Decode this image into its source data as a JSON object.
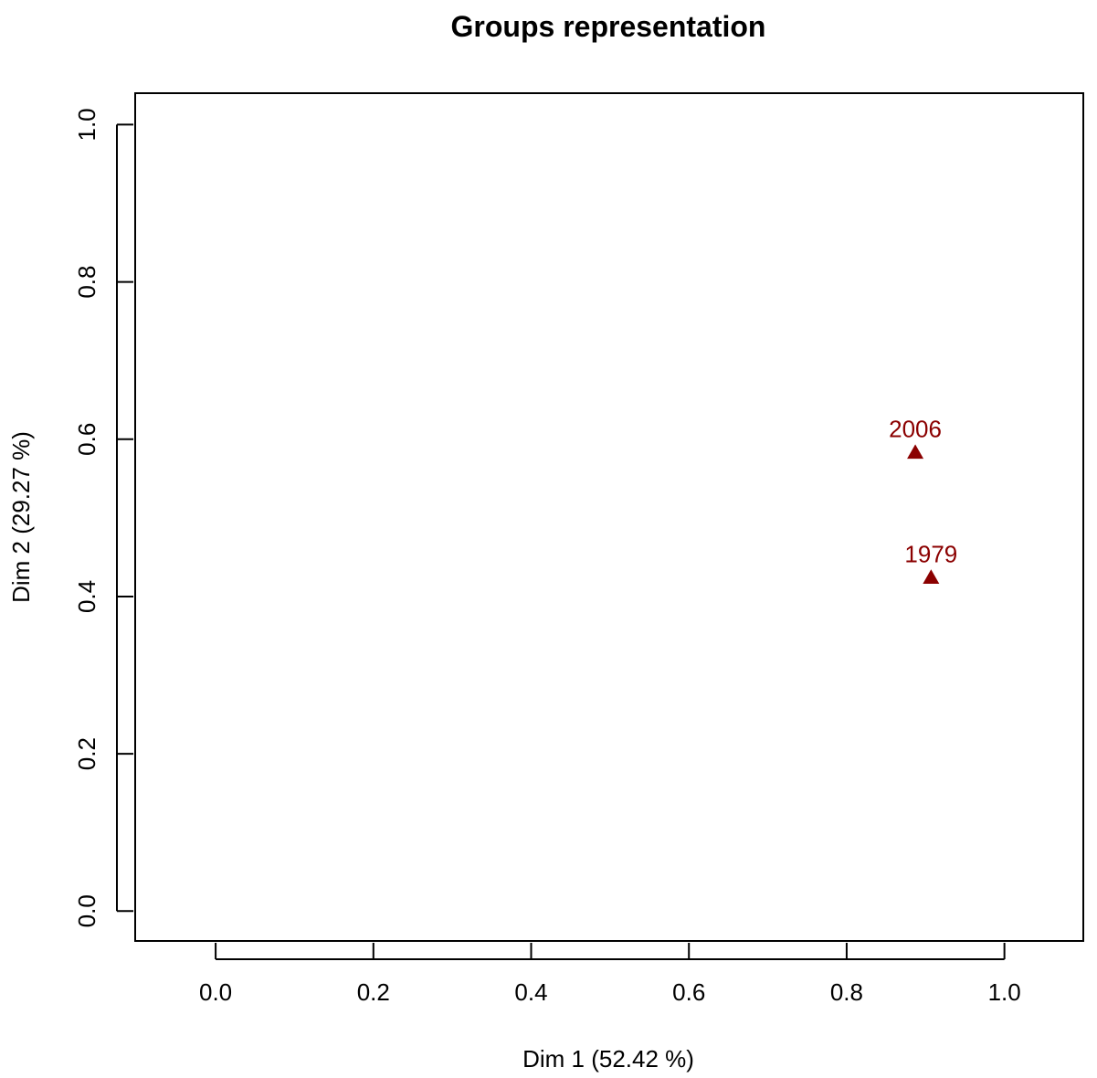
{
  "chart_data": {
    "type": "scatter",
    "title": "Groups representation",
    "xlabel": "Dim 1 (52.42 %)",
    "ylabel": "Dim 2 (29.27 %)",
    "xlim": [
      -0.102,
      1.1
    ],
    "ylim": [
      -0.038,
      1.04
    ],
    "x_ticks": [
      0.0,
      0.2,
      0.4,
      0.6,
      0.8,
      1.0
    ],
    "x_tick_labels": [
      "0.0",
      "0.2",
      "0.4",
      "0.6",
      "0.8",
      "1.0"
    ],
    "y_ticks": [
      0.0,
      0.2,
      0.4,
      0.6,
      0.8,
      1.0
    ],
    "y_tick_labels": [
      "0.0",
      "0.2",
      "0.4",
      "0.6",
      "0.8",
      "1.0"
    ],
    "grid": false,
    "marker": "triangle",
    "point_color": "#8B0000",
    "points": [
      {
        "label": "2006",
        "x": 0.887,
        "y": 0.583
      },
      {
        "label": "1979",
        "x": 0.907,
        "y": 0.424
      }
    ]
  }
}
